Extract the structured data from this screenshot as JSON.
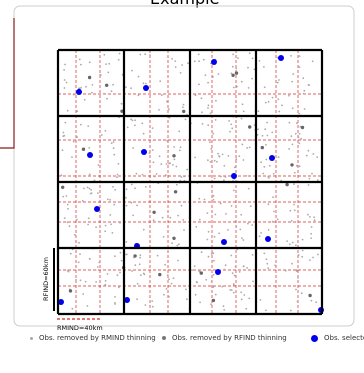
{
  "header": {
    "title_fragment": "Example"
  },
  "colors": {
    "grid_line": "#000000",
    "red_dash": "#d62728",
    "gray_obs": "#999999",
    "dark_obs": "#666666",
    "selected_obs": "#0000ee",
    "frame": "#cccccc",
    "accent_bracket": "#8b1a1a"
  },
  "scale": {
    "rfind_label": "RFIND=60km",
    "rmind_label": "RMIND=40km"
  },
  "legend": {
    "items": [
      {
        "label": "Obs. removed by RMIND thinning",
        "marker": "small-gray-dot"
      },
      {
        "label": "Obs. removed by RFIND thinning",
        "marker": "dark-gray-dot"
      },
      {
        "label": "Obs. selected",
        "marker": "blue-dot"
      }
    ]
  }
}
